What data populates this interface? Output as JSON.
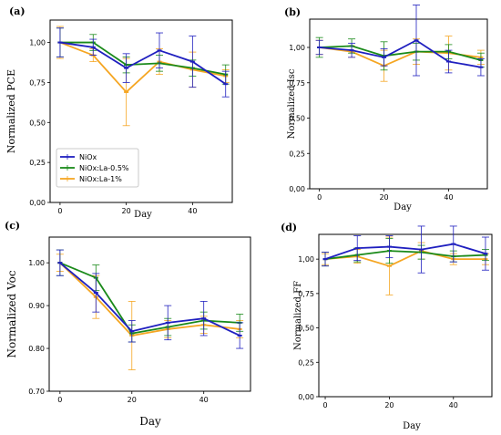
{
  "chart_data": [
    {
      "panel": "(a)",
      "type": "line",
      "xlabel": "Day",
      "ylabel": "Normalized PCE",
      "xticks": [
        "0",
        "20",
        "40"
      ],
      "xlim": [
        -3,
        52
      ],
      "ylim": [
        0,
        1.14
      ],
      "yticks": [
        "0,00",
        "0,25",
        "0,50",
        "0,75",
        "1,00"
      ],
      "legend": "bottom-left",
      "x": [
        0,
        10,
        20,
        30,
        40,
        50
      ],
      "series": [
        {
          "name": "NiOx",
          "color": "#1f1fbf",
          "values": [
            1.0,
            0.97,
            0.84,
            0.95,
            0.88,
            0.74
          ],
          "err": [
            0.09,
            0.05,
            0.09,
            0.11,
            0.16,
            0.08
          ]
        },
        {
          "name": "NiOx:La-0.5%",
          "color": "#1a8a1a",
          "values": [
            1.0,
            1.0,
            0.86,
            0.87,
            0.84,
            0.8
          ],
          "err": [
            0.09,
            0.05,
            0.05,
            0.05,
            0.05,
            0.06
          ]
        },
        {
          "name": "NiOx:La-1%",
          "color": "#f5a623",
          "values": [
            1.0,
            0.92,
            0.69,
            0.88,
            0.83,
            0.79
          ],
          "err": [
            0.1,
            0.04,
            0.21,
            0.08,
            0.11,
            0.04
          ]
        }
      ]
    },
    {
      "panel": "(b)",
      "type": "line",
      "xlabel": "Day",
      "ylabel": "Normalized Isc",
      "xticks": [
        "0",
        "20",
        "40"
      ],
      "xlim": [
        -3,
        52
      ],
      "ylim": [
        0,
        1.2
      ],
      "yticks": [
        "0,00",
        "0,25",
        "0,50",
        "0,75",
        "1,00"
      ],
      "x": [
        0,
        10,
        20,
        30,
        40,
        50
      ],
      "series": [
        {
          "name": "NiOx",
          "color": "#1f1fbf",
          "values": [
            1.0,
            0.98,
            0.93,
            1.05,
            0.9,
            0.86
          ],
          "err": [
            0.05,
            0.05,
            0.06,
            0.25,
            0.08,
            0.06
          ]
        },
        {
          "name": "NiOx:La-0.5%",
          "color": "#1a8a1a",
          "values": [
            1.0,
            1.01,
            0.94,
            0.97,
            0.97,
            0.91
          ],
          "err": [
            0.07,
            0.05,
            0.1,
            0.06,
            0.05,
            0.05
          ]
        },
        {
          "name": "NiOx:La-1%",
          "color": "#f5a623",
          "values": [
            1.0,
            0.97,
            0.87,
            0.97,
            0.96,
            0.93
          ],
          "err": [
            0.05,
            0.04,
            0.11,
            0.09,
            0.12,
            0.05
          ]
        }
      ]
    },
    {
      "panel": "(c)",
      "type": "line",
      "xlabel": "Day",
      "ylabel": "Normalized Voc",
      "xticks": [
        "0",
        "20",
        "40"
      ],
      "xlim": [
        -3,
        53
      ],
      "ylim": [
        0.7,
        1.06
      ],
      "yticks": [
        "0.70",
        "0.80",
        "0.90",
        "1.00"
      ],
      "x": [
        0,
        10,
        20,
        30,
        40,
        50
      ],
      "series": [
        {
          "name": "NiOx",
          "color": "#1f1fbf",
          "values": [
            1.0,
            0.93,
            0.84,
            0.86,
            0.87,
            0.83
          ],
          "err": [
            0.03,
            0.045,
            0.025,
            0.04,
            0.04,
            0.03
          ]
        },
        {
          "name": "NiOx:La-0.5%",
          "color": "#1a8a1a",
          "values": [
            1.0,
            0.965,
            0.835,
            0.85,
            0.865,
            0.86
          ],
          "err": [
            0.03,
            0.03,
            0.02,
            0.02,
            0.02,
            0.02
          ]
        },
        {
          "name": "NiOx:La-1%",
          "color": "#f5a623",
          "values": [
            1.0,
            0.92,
            0.83,
            0.845,
            0.855,
            0.845
          ],
          "err": [
            0.02,
            0.05,
            0.08,
            0.02,
            0.02,
            0.02
          ]
        }
      ]
    },
    {
      "panel": "(d)",
      "type": "line",
      "xlabel": "Day",
      "ylabel": "Normalized FF",
      "xticks": [
        "0",
        "20",
        "40"
      ],
      "xlim": [
        -2,
        52
      ],
      "ylim": [
        0,
        1.18
      ],
      "yticks": [
        "0,00",
        "0,25",
        "0,50",
        "0,75",
        "1,00"
      ],
      "x": [
        0,
        10,
        20,
        30,
        40,
        50
      ],
      "series": [
        {
          "name": "NiOx",
          "color": "#1f1fbf",
          "values": [
            1.0,
            1.08,
            1.09,
            1.07,
            1.11,
            1.04
          ],
          "err": [
            0.05,
            0.09,
            0.08,
            0.17,
            0.13,
            0.12
          ]
        },
        {
          "name": "NiOx:La-0.5%",
          "color": "#1a8a1a",
          "values": [
            1.0,
            1.03,
            1.06,
            1.05,
            1.02,
            1.03
          ],
          "err": [
            0.05,
            0.05,
            0.09,
            0.05,
            0.04,
            0.04
          ]
        },
        {
          "name": "NiOx:La-1%",
          "color": "#f5a623",
          "values": [
            1.0,
            1.02,
            0.95,
            1.06,
            1.0,
            1.0
          ],
          "err": [
            0.04,
            0.05,
            0.21,
            0.06,
            0.04,
            0.04
          ]
        }
      ]
    }
  ]
}
